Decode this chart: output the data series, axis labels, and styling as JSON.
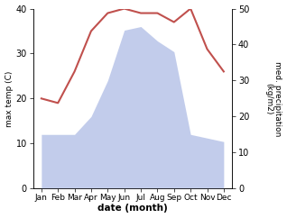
{
  "months": [
    "Jan",
    "Feb",
    "Mar",
    "Apr",
    "May",
    "Jun",
    "Jul",
    "Aug",
    "Sep",
    "Oct",
    "Nov",
    "Dec"
  ],
  "month_indices": [
    0,
    1,
    2,
    3,
    4,
    5,
    6,
    7,
    8,
    9,
    10,
    11
  ],
  "temp": [
    20,
    19,
    26,
    35,
    39,
    40,
    39,
    39,
    37,
    40,
    31,
    26
  ],
  "precip": [
    15,
    15,
    15,
    20,
    30,
    44,
    45,
    41,
    38,
    15,
    14,
    13
  ],
  "temp_color": "#c0504d",
  "precip_fill_color": "#b8c4e8",
  "precip_fill_alpha": 0.85,
  "ylabel_left": "max temp (C)",
  "ylabel_right": "med. precipitation\n(kg/m2)",
  "xlabel": "date (month)",
  "ylim_left": [
    0,
    40
  ],
  "ylim_right": [
    0,
    50
  ],
  "yticks_left": [
    0,
    10,
    20,
    30,
    40
  ],
  "yticks_right": [
    0,
    10,
    20,
    30,
    40,
    50
  ],
  "bg_color": "#ffffff",
  "fig_width": 3.18,
  "fig_height": 2.42,
  "dpi": 100
}
